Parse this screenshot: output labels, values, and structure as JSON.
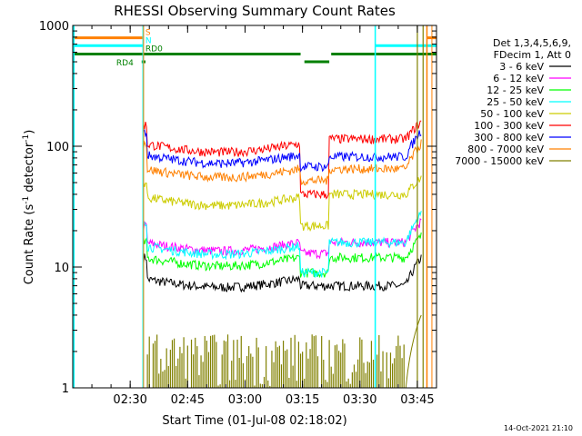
{
  "chart_data": {
    "type": "line",
    "title": "RHESSI Observing Summary Count Rates",
    "xlabel": "Start Time (01-Jul-08 02:18:02)",
    "ylabel_main": "Count Rate (s",
    "ylabel_exp1": "-1",
    "ylabel_mid": " detector",
    "ylabel_exp2": "-1",
    "ylabel_end": ")",
    "yscale": "log",
    "ylim": [
      1,
      1000
    ],
    "xlim_minutes": [
      0,
      95
    ],
    "x_ticks": [
      {
        "m": 15,
        "label": "02:30"
      },
      {
        "m": 30,
        "label": "02:45"
      },
      {
        "m": 45,
        "label": "03:00"
      },
      {
        "m": 60,
        "label": "03:15"
      },
      {
        "m": 75,
        "label": "03:30"
      },
      {
        "m": 90,
        "label": "03:45"
      }
    ],
    "y_ticks": [
      {
        "v": 1,
        "label": "1"
      },
      {
        "v": 10,
        "label": "10"
      },
      {
        "v": 100,
        "label": "100"
      },
      {
        "v": 1000,
        "label": "1000"
      }
    ],
    "legend_header": [
      "Det 1,3,4,5,6,9,",
      "FDecim 1, Att 0"
    ],
    "series": [
      {
        "name": "3 - 6 keV",
        "color": "#000000",
        "pre": 12,
        "a1": 8,
        "b1": 7,
        "gap": 7,
        "rise": 12
      },
      {
        "name": "6 - 12 keV",
        "color": "#ff00ff",
        "pre": 22,
        "a1": 16,
        "b1": 16,
        "gap": 13,
        "rise": 24
      },
      {
        "name": "12 - 25 keV",
        "color": "#00ff00",
        "pre": 16,
        "a1": 12,
        "b1": 12,
        "gap": 9,
        "rise": 18
      },
      {
        "name": "25 - 50 keV",
        "color": "#00ffff",
        "pre": 24,
        "a1": 15,
        "b1": 16,
        "gap": 9,
        "rise": 28
      },
      {
        "name": "50 - 100 keV",
        "color": "#cccc00",
        "pre": 50,
        "a1": 38,
        "b1": 40,
        "gap": 22,
        "rise": 55
      },
      {
        "name": "100 - 300 keV",
        "color": "#ff0000",
        "pre": 150,
        "a1": 105,
        "b1": 115,
        "gap": 40,
        "rise": 160
      },
      {
        "name": "300 - 800 keV",
        "color": "#0000ff",
        "pre": 130,
        "a1": 85,
        "b1": 82,
        "gap": 68,
        "rise": 135
      },
      {
        "name": "800 - 7000 keV",
        "color": "#ff8000",
        "pre": 105,
        "a1": 65,
        "b1": 65,
        "gap": 52,
        "rise": 105
      },
      {
        "name": "7000 - 15000 keV",
        "color": "#808000",
        "pre": 1,
        "a1": 1,
        "b1": 1,
        "gap": 1,
        "rise": 4
      }
    ],
    "flags": [
      {
        "label": "S",
        "color": "#ff8000",
        "value": 790
      },
      {
        "label": "N",
        "color": "#00ffff",
        "value": 680
      },
      {
        "label": "RD0",
        "color": "#008000",
        "value": 580
      },
      {
        "label": "RD4",
        "color": "#008000",
        "value": 500
      }
    ],
    "timestamp": "14-Oct-2021 21:10"
  },
  "colors": {
    "axis": "#000000",
    "background": "#ffffff"
  }
}
